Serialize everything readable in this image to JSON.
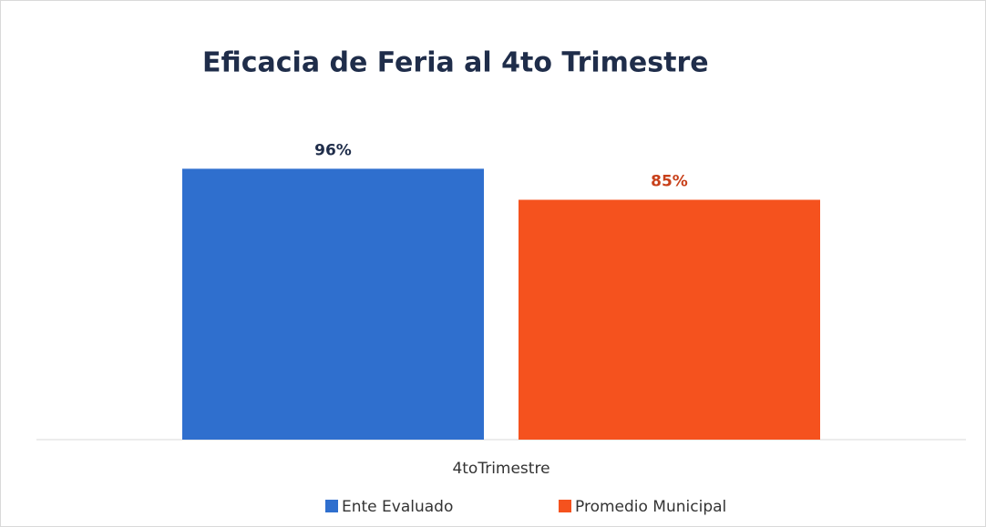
{
  "chart_data": {
    "type": "bar",
    "title": "Eficacia de Feria al 4to Trimestre",
    "categories": [
      "4toTrimestre"
    ],
    "series": [
      {
        "name": "Ente Evaluado",
        "color": "#2f6fce",
        "label_color": "#1f2d4a",
        "values": [
          96
        ],
        "value_labels": [
          "96%"
        ]
      },
      {
        "name": "Promedio Municipal",
        "color": "#f5521e",
        "label_color": "#c8401a",
        "values": [
          85
        ],
        "value_labels": [
          "85%"
        ]
      }
    ],
    "ylim": [
      0,
      100
    ],
    "legend": "bottom"
  }
}
